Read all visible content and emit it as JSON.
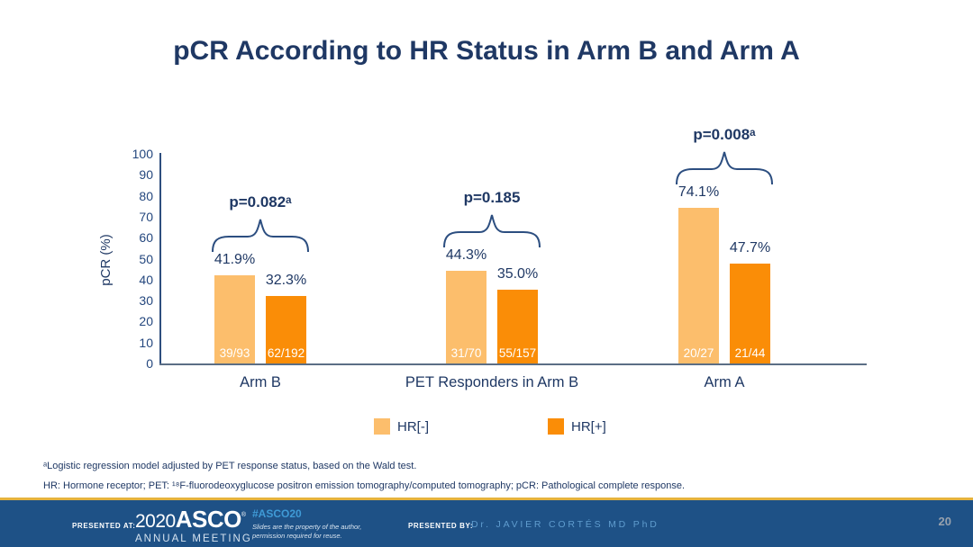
{
  "slide": {
    "title": "pCR According to HR Status in Arm B and Arm A"
  },
  "chart_data": {
    "type": "bar",
    "title": "pCR According to HR Status in Arm B and Arm A",
    "ylabel": "pCR (%)",
    "xlabel": "",
    "ylim": [
      0,
      100
    ],
    "yticks": [
      0,
      10,
      20,
      30,
      40,
      50,
      60,
      70,
      80,
      90,
      100
    ],
    "grid": false,
    "legend_position": "bottom",
    "categories": [
      "Arm B",
      "PET Responders in Arm B",
      "Arm A"
    ],
    "series": [
      {
        "name": "HR[-]",
        "color": "#FCBE6C",
        "values": [
          41.9,
          44.3,
          74.1
        ],
        "counts": [
          "39/93",
          "31/70",
          "20/27"
        ]
      },
      {
        "name": "HR[+]",
        "color": "#FA8D07",
        "values": [
          32.3,
          35.0,
          47.7
        ],
        "counts": [
          "62/192",
          "55/157",
          "21/44"
        ]
      }
    ],
    "value_labels": [
      [
        "41.9%",
        "44.3%",
        "74.1%"
      ],
      [
        "32.3%",
        "35.0%",
        "47.7%"
      ]
    ],
    "p_values": [
      "p=0.082ᵃ",
      "p=0.185",
      "p=0.008ᵃ"
    ]
  },
  "legend": {
    "items": [
      {
        "label": "HR[-]",
        "color": "#FCBE6C"
      },
      {
        "label": "HR[+]",
        "color": "#FA8D07"
      }
    ]
  },
  "footnotes": {
    "line1": "ᵃLogistic regression model adjusted by PET response status, based on the Wald test.",
    "line2": "HR: Hormone receptor; PET: ¹⁸F-fluorodeoxyglucose positron emission tomography/computed tomography; pCR: Pathological complete response."
  },
  "footer": {
    "presented_at_label": "PRESENTED AT:",
    "logo_year": "2020",
    "logo_name": "ASCO",
    "logo_reg": "®",
    "logo_sub": "ANNUAL MEETING",
    "hashtag": "#ASCO20",
    "disclaimer_line1": "Slides are the property of the author,",
    "disclaimer_line2": "permission required for reuse.",
    "presented_by_label": "PRESENTED BY:",
    "presenter": "Dr. JAVIER CORTÉS MD PhD",
    "page_number": "20"
  },
  "colors": {
    "navy_text": "#1F3864",
    "axis_navy": "#2E4E7E",
    "axis_gray": "#5B6E85",
    "hr_neg_orange": "#FCBE6C",
    "hr_pos_orange": "#FA8D07",
    "footer_blue": "#1E5186",
    "footer_gold_line": "#E6B33D",
    "hashtag_blue": "#3F9AD6",
    "presenter_blue": "#5F9CCE",
    "page_number_gray": "#97A1AD"
  }
}
